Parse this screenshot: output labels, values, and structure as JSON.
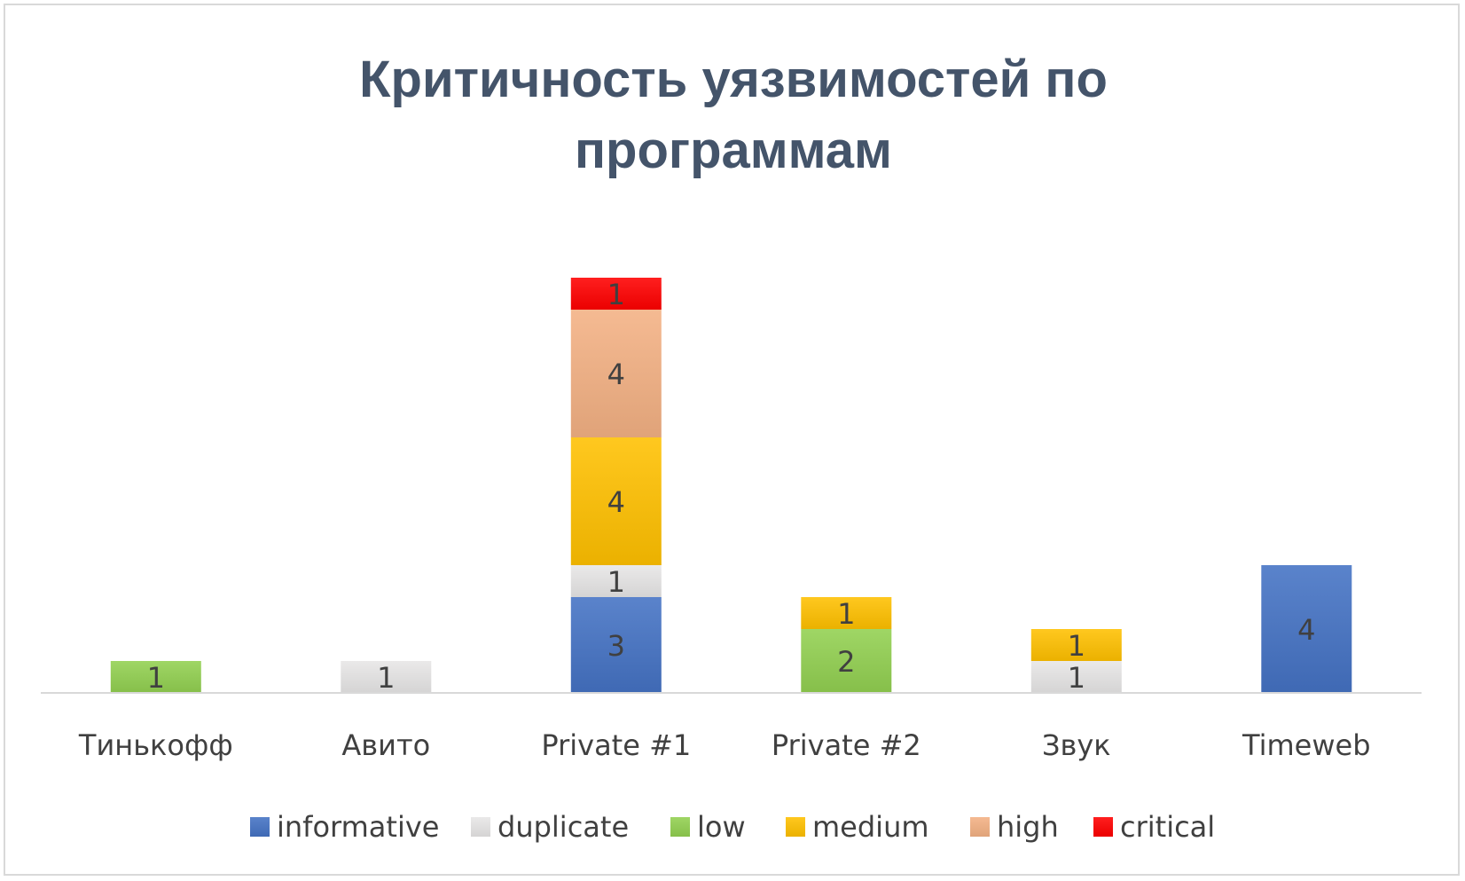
{
  "chart_data": {
    "type": "bar",
    "stacked": true,
    "title": "Критичность уязвимостей по программам",
    "title_lines": [
      "Критичность уязвимостей по",
      "программам"
    ],
    "xlabel": "",
    "ylabel": "",
    "ylim": [
      0,
      13
    ],
    "grid": false,
    "legend_position": "bottom",
    "categories": [
      "Тинькофф",
      "Авито",
      "Private #1",
      "Private #2",
      "Звук",
      "Timeweb"
    ],
    "series": [
      {
        "name": "informative",
        "color": "#4472c4",
        "values": [
          0,
          0,
          3,
          0,
          0,
          4
        ]
      },
      {
        "name": "duplicate",
        "color": "#e7e6e6",
        "values": [
          0,
          1,
          1,
          0,
          1,
          0
        ]
      },
      {
        "name": "low",
        "color": "#92d050",
        "values": [
          1,
          0,
          0,
          2,
          0,
          0
        ]
      },
      {
        "name": "medium",
        "color": "#ffc000",
        "values": [
          0,
          0,
          4,
          1,
          1,
          0
        ]
      },
      {
        "name": "high",
        "color": "#f4b183",
        "values": [
          0,
          0,
          4,
          0,
          0,
          0
        ]
      },
      {
        "name": "critical",
        "color": "#ff0000",
        "values": [
          0,
          0,
          1,
          0,
          0,
          0
        ]
      }
    ]
  }
}
